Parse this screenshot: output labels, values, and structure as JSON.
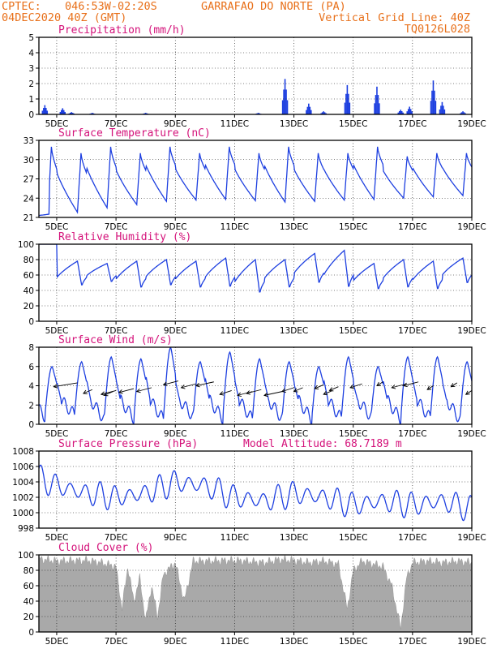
{
  "header": {
    "source": "CPTEC:",
    "coords": "046:53W-02:20S",
    "location": "GARRAFAO DO NORTE (PA)",
    "run_time": "04DEC2020 40Z (GMT)",
    "grid_note": "Vertical Grid Line: 40Z",
    "model": "TQ0126L028"
  },
  "colors": {
    "header": "#e8701a",
    "panel_title": "#d4127a",
    "line": "#1d3fe0",
    "cloud": "#a9a9a9",
    "wind_arrow": "#000000"
  },
  "x_axis": {
    "ticks": [
      "5DEC",
      "7DEC",
      "9DEC",
      "11DEC",
      "13DEC",
      "15DEC",
      "17DEC",
      "19DEC"
    ],
    "tick_days": [
      5,
      7,
      9,
      11,
      13,
      15,
      17,
      19
    ],
    "start_day": 4.4,
    "end_day": 19.0
  },
  "chart_data": [
    {
      "type": "bar",
      "title": "Precipitation (mm/h)",
      "ylim": [
        0,
        5
      ],
      "yticks": [
        0,
        1,
        2,
        3,
        4,
        5
      ],
      "events": [
        [
          4.6,
          0.6
        ],
        [
          5.2,
          0.4
        ],
        [
          5.5,
          0.15
        ],
        [
          6.2,
          0.1
        ],
        [
          8.0,
          0.1
        ],
        [
          11.8,
          0.1
        ],
        [
          12.7,
          2.3
        ],
        [
          13.5,
          0.7
        ],
        [
          14.0,
          0.2
        ],
        [
          14.8,
          1.9
        ],
        [
          15.8,
          1.8
        ],
        [
          16.6,
          0.3
        ],
        [
          16.9,
          0.5
        ],
        [
          17.7,
          2.2
        ],
        [
          18.0,
          0.8
        ],
        [
          18.7,
          0.2
        ]
      ]
    },
    {
      "type": "line",
      "title": "Surface Temperature (nC)",
      "ylim": [
        21,
        33
      ],
      "yticks": [
        21,
        24,
        27,
        30,
        33
      ],
      "baseline": [
        21.5,
        21.8,
        22.5,
        23.0,
        23.5,
        23.7,
        23.8,
        23.6,
        23.4,
        23.5,
        23.7,
        23.8,
        24.0,
        24.2,
        24.4,
        24.5
      ],
      "peaks": [
        32.0,
        31.0,
        32.0,
        31.0,
        32.0,
        31.0,
        32.0,
        31.0,
        32.0,
        31.0,
        31.0,
        32.0,
        30.5,
        31.0,
        31.0,
        30.5
      ]
    },
    {
      "type": "line",
      "title": "Relative Humidity (%)",
      "ylim": [
        0,
        100
      ],
      "yticks": [
        0,
        20,
        40,
        60,
        80,
        100
      ],
      "minima": [
        100,
        45,
        50,
        42,
        45,
        42,
        43,
        35,
        42,
        48,
        42,
        40,
        42,
        40,
        48,
        98,
        50
      ],
      "maxima": [
        100,
        78,
        75,
        78,
        80,
        78,
        82,
        80,
        80,
        88,
        92,
        75,
        80,
        78,
        82,
        100,
        75
      ]
    },
    {
      "type": "line",
      "title": "Surface Wind (m/s)",
      "ylim": [
        0,
        8
      ],
      "yticks": [
        0,
        2,
        4,
        6,
        8
      ],
      "peaks": [
        6.0,
        6.5,
        7.0,
        6.8,
        8.0,
        6.5,
        7.5,
        6.8,
        6.5,
        6.0,
        7.0,
        6.0,
        7.0,
        7.0,
        6.5,
        7.0
      ],
      "minima": [
        0.8,
        1.0,
        0.5,
        0.6,
        0.5,
        0.8,
        0.6,
        0.5,
        0.6,
        0.5,
        0.6,
        0.8,
        0.5,
        0.6,
        0.5,
        0.6
      ],
      "arrows": [
        [
          4.9,
          5.7,
          3.9
        ],
        [
          5.9,
          6.2,
          3.2
        ],
        [
          6.5,
          7.0,
          3.1
        ],
        [
          6.6,
          6.9,
          3.0
        ],
        [
          7.1,
          7.6,
          3.3
        ],
        [
          7.7,
          8.2,
          3.4
        ],
        [
          8.6,
          9.1,
          4.1
        ],
        [
          9.2,
          9.7,
          3.8
        ],
        [
          9.7,
          10.3,
          4.0
        ],
        [
          10.5,
          10.9,
          3.1
        ],
        [
          11.1,
          11.6,
          3.0
        ],
        [
          11.4,
          11.9,
          3.2
        ],
        [
          12.0,
          12.6,
          3.0
        ],
        [
          12.6,
          13.0,
          3.4
        ],
        [
          13.0,
          13.3,
          3.4
        ],
        [
          13.7,
          14.0,
          3.7
        ],
        [
          14.0,
          14.3,
          3.1
        ],
        [
          14.2,
          14.5,
          3.5
        ],
        [
          14.9,
          15.3,
          3.8
        ],
        [
          15.8,
          16.0,
          4.0
        ],
        [
          16.3,
          16.8,
          3.8
        ],
        [
          16.7,
          17.2,
          4.0
        ],
        [
          17.5,
          17.7,
          3.6
        ],
        [
          18.3,
          18.5,
          3.9
        ],
        [
          18.8,
          19.0,
          3.1
        ]
      ]
    },
    {
      "type": "line",
      "title": "Surface Pressure (hPa)",
      "annotation": "Model Altitude: 68.7189 m",
      "ylim": [
        998,
        1008
      ],
      "yticks": [
        998,
        1000,
        1002,
        1004,
        1006,
        1008
      ],
      "trend": [
        [
          4.4,
          1004.5
        ],
        [
          5.0,
          1003.5
        ],
        [
          6.0,
          1002.5
        ],
        [
          7.0,
          1002.0
        ],
        [
          8.0,
          1002.5
        ],
        [
          9.0,
          1004.0
        ],
        [
          10.0,
          1003.5
        ],
        [
          11.0,
          1002.0
        ],
        [
          12.0,
          1001.5
        ],
        [
          13.0,
          1002.5
        ],
        [
          14.0,
          1002.0
        ],
        [
          15.0,
          1001.0
        ],
        [
          16.0,
          1001.5
        ],
        [
          17.0,
          1001.0
        ],
        [
          18.0,
          1001.5
        ],
        [
          19.0,
          1000.5
        ]
      ],
      "amplitude": 1.8
    },
    {
      "type": "area",
      "title": "Cloud Cover (%)",
      "ylim": [
        0,
        100
      ],
      "yticks": [
        0,
        20,
        40,
        60,
        80,
        100
      ],
      "profile": [
        [
          4.4,
          95
        ],
        [
          5.0,
          92
        ],
        [
          6.0,
          93
        ],
        [
          6.5,
          90
        ],
        [
          7.0,
          85
        ],
        [
          7.2,
          30
        ],
        [
          7.4,
          85
        ],
        [
          7.6,
          40
        ],
        [
          7.8,
          70
        ],
        [
          8.0,
          15
        ],
        [
          8.2,
          60
        ],
        [
          8.4,
          20
        ],
        [
          8.6,
          75
        ],
        [
          9.0,
          90
        ],
        [
          9.3,
          40
        ],
        [
          9.6,
          92
        ],
        [
          10.0,
          92
        ],
        [
          11.0,
          93
        ],
        [
          12.0,
          90
        ],
        [
          12.5,
          94
        ],
        [
          13.0,
          93
        ],
        [
          13.5,
          90
        ],
        [
          14.0,
          92
        ],
        [
          14.5,
          88
        ],
        [
          14.8,
          30
        ],
        [
          15.0,
          80
        ],
        [
          15.3,
          92
        ],
        [
          16.0,
          85
        ],
        [
          16.3,
          60
        ],
        [
          16.6,
          5
        ],
        [
          16.8,
          70
        ],
        [
          17.0,
          90
        ],
        [
          17.5,
          92
        ],
        [
          18.0,
          90
        ],
        [
          18.5,
          92
        ],
        [
          19.0,
          90
        ]
      ]
    }
  ]
}
